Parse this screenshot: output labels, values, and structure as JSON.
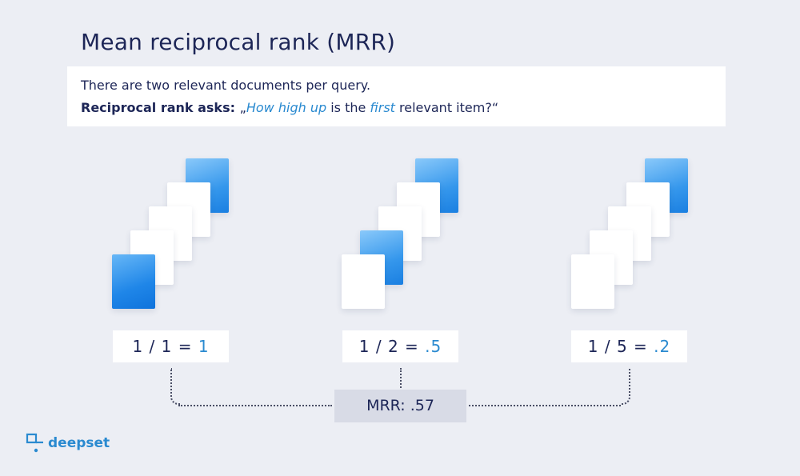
{
  "title": "Mean reciprocal rank (MRR)",
  "intro": {
    "line1": "There are two relevant documents per query.",
    "line2_bold": "Reciprocal rank asks: ",
    "line2_q_open": "„",
    "line2_hl1": "How high up",
    "line2_mid": " is the ",
    "line2_hl2": "first",
    "line2_end": " relevant item?“"
  },
  "queries": [
    {
      "score_label": "1 / 1 = ",
      "score_value": "1",
      "relevant_ranks": [
        1,
        5
      ]
    },
    {
      "score_label": "1 / 2 = ",
      "score_value": ".5",
      "relevant_ranks": [
        2,
        5
      ]
    },
    {
      "score_label": "1 / 5 = ",
      "score_value": ".2",
      "relevant_ranks": [
        5
      ]
    }
  ],
  "mrr_label": "MRR: .57",
  "brand": {
    "name": "deepset",
    "accent": "#2a8ad0",
    "text": "#1d2657"
  }
}
